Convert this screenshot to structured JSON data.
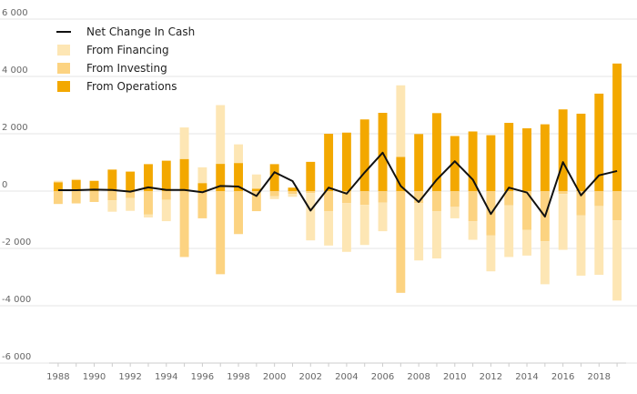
{
  "chart_data": {
    "type": "bar",
    "subtype": "stacked bar with line overlay",
    "x": [
      1988,
      1989,
      1990,
      1991,
      1992,
      1993,
      1994,
      1995,
      1996,
      1997,
      1998,
      1999,
      2000,
      2001,
      2002,
      2003,
      2004,
      2005,
      2006,
      2007,
      2008,
      2009,
      2010,
      2011,
      2012,
      2013,
      2014,
      2015,
      2016,
      2017,
      2018,
      2019
    ],
    "x_tick_labels": [
      "1988",
      "1990",
      "1992",
      "1994",
      "1996",
      "1998",
      "2000",
      "2002",
      "2004",
      "2006",
      "2008",
      "2010",
      "2012",
      "2014",
      "2016",
      "2018"
    ],
    "ylim": [
      -6000,
      6000
    ],
    "y_ticks": [
      -6000,
      -4000,
      -2000,
      0,
      2000,
      4000,
      6000
    ],
    "y_tick_labels": [
      "-6 000",
      "-4 000",
      "-2 000",
      "0",
      "2 000",
      "4 000",
      "6 000"
    ],
    "grid": "horizontal",
    "legend_position": "top-left",
    "series": [
      {
        "name": "Net Change In Cash",
        "kind": "line",
        "color": "#111111",
        "values": [
          30,
          30,
          50,
          40,
          -20,
          130,
          40,
          40,
          -40,
          180,
          160,
          -170,
          660,
          350,
          -680,
          120,
          -90,
          650,
          1340,
          180,
          -380,
          400,
          1040,
          400,
          -800,
          120,
          -50,
          -890,
          1010,
          -150,
          550,
          700
        ]
      },
      {
        "name": "From Financing",
        "kind": "bar",
        "color": "#fde6b4",
        "values": [
          50,
          30,
          30,
          -400,
          -450,
          -100,
          -750,
          1100,
          550,
          2050,
          650,
          500,
          -100,
          -100,
          -1650,
          -1200,
          -1700,
          -1400,
          -1000,
          2500,
          -2000,
          -1650,
          -400,
          -650,
          -1250,
          -1800,
          -900,
          -1500,
          -1950,
          -2100,
          -2400,
          -2800
        ]
      },
      {
        "name": "From Investing",
        "kind": "bar",
        "color": "#fcd381",
        "values": [
          -450,
          -430,
          -380,
          -320,
          -240,
          -820,
          -300,
          -2300,
          -950,
          -2900,
          -1500,
          -700,
          -180,
          -100,
          -70,
          -700,
          -420,
          -480,
          -400,
          -3550,
          -420,
          -700,
          -550,
          -1050,
          -1550,
          -500,
          -1350,
          -1750,
          -100,
          -850,
          -520,
          -1020
        ]
      },
      {
        "name": "From Operations",
        "kind": "bar",
        "color": "#f3a800",
        "values": [
          310,
          390,
          350,
          750,
          680,
          940,
          1060,
          1120,
          280,
          950,
          980,
          80,
          940,
          120,
          1020,
          2000,
          2040,
          2500,
          2730,
          1190,
          1990,
          2720,
          1920,
          2080,
          1950,
          2380,
          2190,
          2330,
          2850,
          2700,
          3400,
          4450
        ]
      }
    ]
  }
}
